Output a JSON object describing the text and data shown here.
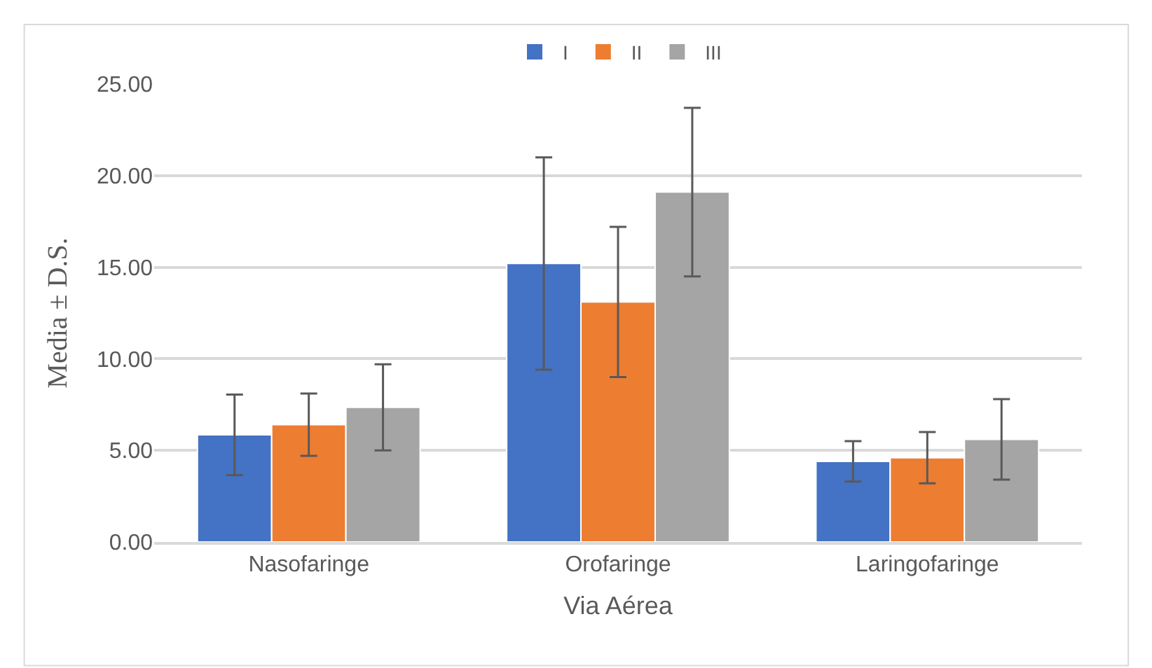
{
  "chart_data": {
    "type": "bar",
    "categories": [
      "Nasofaringe",
      "Orofaringe",
      "Laringofaringe"
    ],
    "xlabel": "Via Aérea",
    "ylabel": "Media ± D.S.",
    "series": [
      {
        "name": "I",
        "color": "#4472c4",
        "values": [
          5.85,
          15.2,
          4.4
        ],
        "errors": [
          2.2,
          5.8,
          1.1
        ]
      },
      {
        "name": "II",
        "color": "#ed7d31",
        "values": [
          6.4,
          13.1,
          4.6
        ],
        "errors": [
          1.7,
          4.1,
          1.4
        ]
      },
      {
        "name": "III",
        "color": "#a5a5a5",
        "values": [
          7.35,
          19.1,
          5.6
        ],
        "errors": [
          2.35,
          4.6,
          2.2
        ]
      }
    ],
    "ylim": [
      0,
      25
    ],
    "yticks": [
      {
        "value": 0,
        "label": "0.00"
      },
      {
        "value": 5,
        "label": "5.00"
      },
      {
        "value": 10,
        "label": "10.00"
      },
      {
        "value": 15,
        "label": "15.00"
      },
      {
        "value": 20,
        "label": "20.00"
      },
      {
        "value": 25,
        "label": "25.00"
      }
    ],
    "grid": "y",
    "legend": "top"
  }
}
